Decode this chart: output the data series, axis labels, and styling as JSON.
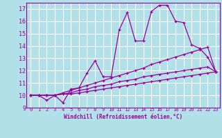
{
  "background_color": "#b2e0e8",
  "grid_color": "#ffffff",
  "line_color": "#990099",
  "title": "Windchill (Refroidissement éolien,°C)",
  "ylim": [
    9,
    17.5
  ],
  "xlim": [
    -0.5,
    23.5
  ],
  "yticks": [
    9,
    10,
    11,
    12,
    13,
    14,
    15,
    16,
    17
  ],
  "xticks": [
    0,
    1,
    2,
    3,
    4,
    5,
    6,
    7,
    8,
    9,
    10,
    11,
    12,
    13,
    14,
    15,
    16,
    17,
    18,
    19,
    20,
    21,
    22,
    23
  ],
  "series": [
    [
      10.0,
      10.0,
      9.6,
      10.0,
      9.4,
      10.5,
      10.6,
      11.8,
      12.8,
      11.5,
      11.5,
      15.3,
      16.7,
      14.4,
      14.4,
      16.8,
      17.3,
      17.3,
      16.0,
      15.9,
      14.1,
      13.8,
      13.1,
      11.9
    ],
    [
      10.0,
      10.0,
      10.0,
      10.0,
      10.2,
      10.4,
      10.6,
      10.8,
      11.0,
      11.2,
      11.4,
      11.6,
      11.8,
      12.0,
      12.2,
      12.5,
      12.7,
      12.9,
      13.1,
      13.3,
      13.5,
      13.7,
      13.9,
      11.9
    ],
    [
      10.0,
      10.0,
      10.0,
      10.0,
      10.1,
      10.2,
      10.4,
      10.5,
      10.7,
      10.8,
      10.9,
      11.1,
      11.2,
      11.3,
      11.5,
      11.6,
      11.7,
      11.8,
      11.9,
      12.0,
      12.1,
      12.2,
      12.3,
      11.9
    ],
    [
      10.0,
      10.0,
      10.0,
      10.0,
      10.1,
      10.1,
      10.2,
      10.3,
      10.4,
      10.5,
      10.6,
      10.7,
      10.8,
      10.9,
      11.0,
      11.1,
      11.2,
      11.3,
      11.4,
      11.5,
      11.6,
      11.7,
      11.8,
      11.9
    ]
  ]
}
